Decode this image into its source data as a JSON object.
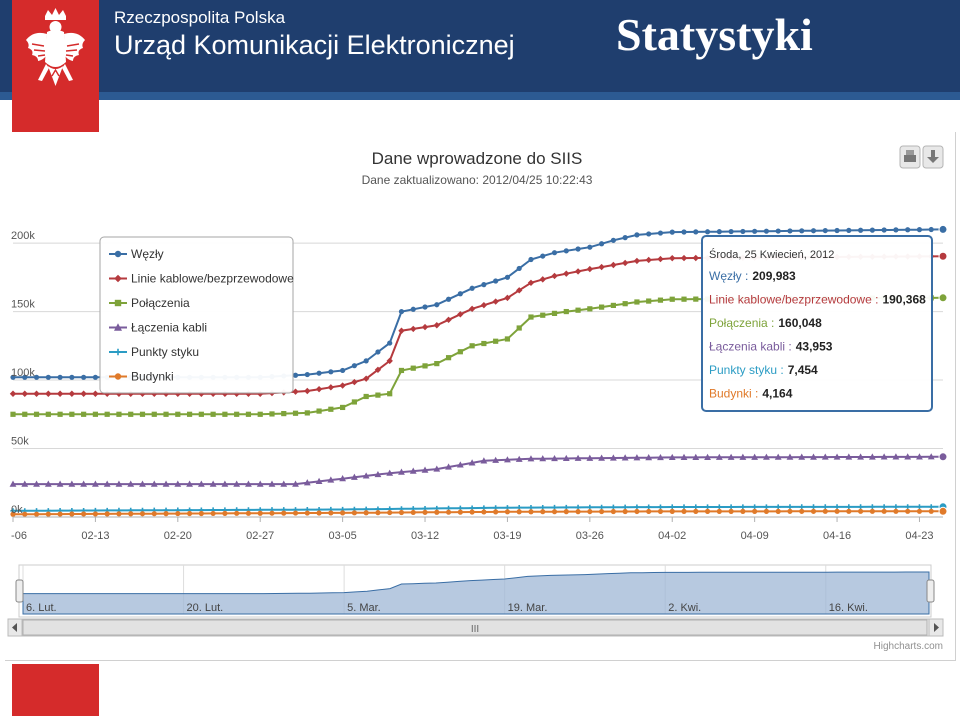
{
  "header": {
    "gov_line1": "Rzeczpospolita Polska",
    "gov_line2": "Urząd Komunikacji Elektronicznej",
    "slide_title": "Statystyki",
    "emblem_icon": "white-eagle-icon",
    "color_blue": "#1f3e6e",
    "color_red": "#d52b2b"
  },
  "chart_data": {
    "type": "line",
    "title": "Dane wprowadzone do SIIS",
    "subtitle": "Dane zaktualizowano: 2012/04/25 10:22:43",
    "xlabel": "",
    "ylabel": "",
    "x_start": "2012-02-06",
    "x_end": "2012-04-25",
    "x_ticks": [
      "-06",
      "02-13",
      "02-20",
      "02-27",
      "03-05",
      "03-12",
      "03-19",
      "03-26",
      "04-02",
      "04-09",
      "04-16",
      "04-23"
    ],
    "y_ticks": [
      "0k",
      "50k",
      "100k",
      "150k",
      "200k"
    ],
    "ylim": [
      0,
      230000
    ],
    "grid": true,
    "legend_position": "top-left",
    "series": [
      {
        "name": "Węzły",
        "color": "#3a6ea5",
        "marker": "circle",
        "points": [
          [
            "2012-02-06",
            102000
          ],
          [
            "2012-02-27",
            102000
          ],
          [
            "2012-03-02",
            104000
          ],
          [
            "2012-03-05",
            107000
          ],
          [
            "2012-03-07",
            114000
          ],
          [
            "2012-03-09",
            127000
          ],
          [
            "2012-03-10",
            150000
          ],
          [
            "2012-03-13",
            155000
          ],
          [
            "2012-03-16",
            167000
          ],
          [
            "2012-03-19",
            175000
          ],
          [
            "2012-03-21",
            188000
          ],
          [
            "2012-03-23",
            193000
          ],
          [
            "2012-03-26",
            197000
          ],
          [
            "2012-03-28",
            202000
          ],
          [
            "2012-03-30",
            206000
          ],
          [
            "2012-04-02",
            208000
          ],
          [
            "2012-04-25",
            209983
          ]
        ]
      },
      {
        "name": "Linie kablowe/bezprzewodowe",
        "color": "#b53a3e",
        "marker": "diamond",
        "points": [
          [
            "2012-02-06",
            90000
          ],
          [
            "2012-02-27",
            90000
          ],
          [
            "2012-03-02",
            92000
          ],
          [
            "2012-03-05",
            96000
          ],
          [
            "2012-03-07",
            101000
          ],
          [
            "2012-03-09",
            114000
          ],
          [
            "2012-03-10",
            136000
          ],
          [
            "2012-03-13",
            140000
          ],
          [
            "2012-03-16",
            152000
          ],
          [
            "2012-03-19",
            160000
          ],
          [
            "2012-03-21",
            171000
          ],
          [
            "2012-03-23",
            176000
          ],
          [
            "2012-03-26",
            181000
          ],
          [
            "2012-03-28",
            184000
          ],
          [
            "2012-03-30",
            187000
          ],
          [
            "2012-04-02",
            189000
          ],
          [
            "2012-04-25",
            190368
          ]
        ]
      },
      {
        "name": "Połączenia",
        "color": "#7ea33a",
        "marker": "square",
        "points": [
          [
            "2012-02-06",
            75000
          ],
          [
            "2012-02-27",
            75000
          ],
          [
            "2012-03-02",
            76000
          ],
          [
            "2012-03-05",
            80000
          ],
          [
            "2012-03-07",
            88000
          ],
          [
            "2012-03-09",
            90000
          ],
          [
            "2012-03-10",
            107000
          ],
          [
            "2012-03-13",
            112000
          ],
          [
            "2012-03-16",
            125000
          ],
          [
            "2012-03-19",
            130000
          ],
          [
            "2012-03-21",
            146000
          ],
          [
            "2012-03-24",
            150000
          ],
          [
            "2012-03-26",
            152000
          ],
          [
            "2012-03-30",
            157000
          ],
          [
            "2012-04-02",
            159000
          ],
          [
            "2012-04-25",
            160048
          ]
        ]
      },
      {
        "name": "Łączenia kabli",
        "color": "#7a5c9c",
        "marker": "triangle",
        "points": [
          [
            "2012-02-06",
            24000
          ],
          [
            "2012-02-27",
            24000
          ],
          [
            "2012-03-01",
            24000
          ],
          [
            "2012-03-05",
            28000
          ],
          [
            "2012-03-09",
            32000
          ],
          [
            "2012-03-13",
            35000
          ],
          [
            "2012-03-17",
            41000
          ],
          [
            "2012-03-21",
            42500
          ],
          [
            "2012-04-02",
            43500
          ],
          [
            "2012-04-25",
            43953
          ]
        ]
      },
      {
        "name": "Punkty styku",
        "color": "#2b9cc4",
        "marker": "cross",
        "points": [
          [
            "2012-02-06",
            4500
          ],
          [
            "2012-03-05",
            5500
          ],
          [
            "2012-03-19",
            6800
          ],
          [
            "2012-04-02",
            7300
          ],
          [
            "2012-04-25",
            7454
          ]
        ]
      },
      {
        "name": "Budynki",
        "color": "#e07a2a",
        "marker": "circle",
        "points": [
          [
            "2012-02-06",
            2000
          ],
          [
            "2012-03-05",
            3000
          ],
          [
            "2012-03-19",
            3800
          ],
          [
            "2012-04-02",
            4100
          ],
          [
            "2012-04-25",
            4164
          ]
        ]
      }
    ],
    "tooltip": {
      "date_label": "Środa, 25 Kwiecień, 2012",
      "rows": [
        {
          "label": "Węzły",
          "value": "209,983",
          "color": "#3a6ea5"
        },
        {
          "label": "Linie kablowe/bezprzewodowe",
          "value": "190,368",
          "color": "#b53a3e"
        },
        {
          "label": "Połączenia",
          "value": "160,048",
          "color": "#7ea33a"
        },
        {
          "label": "Łączenia kabli",
          "value": "43,953",
          "color": "#7a5c9c"
        },
        {
          "label": "Punkty styku",
          "value": "7,454",
          "color": "#2b9cc4"
        },
        {
          "label": "Budynki",
          "value": "4,164",
          "color": "#e07a2a"
        }
      ]
    },
    "navigator": {
      "labels": [
        "6. Lut.",
        "20. Lut.",
        "5. Mar.",
        "19. Mar.",
        "2. Kwi.",
        "16. Kwi."
      ],
      "scroll_label": "III"
    },
    "buttons": {
      "print_icon": "printer-icon",
      "export_icon": "download-icon"
    },
    "credits": "Highcharts.com"
  }
}
